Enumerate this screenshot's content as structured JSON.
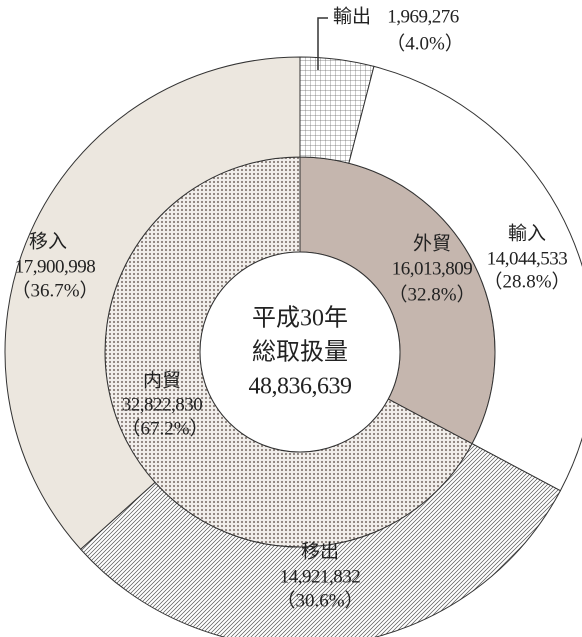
{
  "chart_data": {
    "type": "pie",
    "rings": [
      {
        "categories": [
          "外貿",
          "内貿"
        ],
        "values": [
          16013809,
          32822830
        ],
        "value_labels": [
          "16,013,809",
          "32,822,830"
        ],
        "percents": [
          32.8,
          67.2
        ],
        "percent_labels": [
          "（32.8%）",
          "（67.2%）"
        ],
        "fills": [
          "#c5b6ae",
          "dots"
        ]
      },
      {
        "categories": [
          "輸出",
          "輸入",
          "移出",
          "移入"
        ],
        "values": [
          1969276,
          14044533,
          14921832,
          17900998
        ],
        "value_labels": [
          "1,969,276",
          "14,044,533",
          "14,921,832",
          "17,900,998"
        ],
        "percents": [
          4.0,
          28.8,
          30.6,
          36.7
        ],
        "percent_labels": [
          "（4.0%）",
          "（28.8%）",
          "（30.6%）",
          "（36.7%）"
        ],
        "fills": [
          "grid",
          "#ffffff",
          "hatch",
          "#ece7df"
        ]
      }
    ],
    "center": {
      "year": "平成30年",
      "label": "総取扱量",
      "total": {
        "value": 48836639,
        "label": "48,836,639"
      }
    }
  }
}
